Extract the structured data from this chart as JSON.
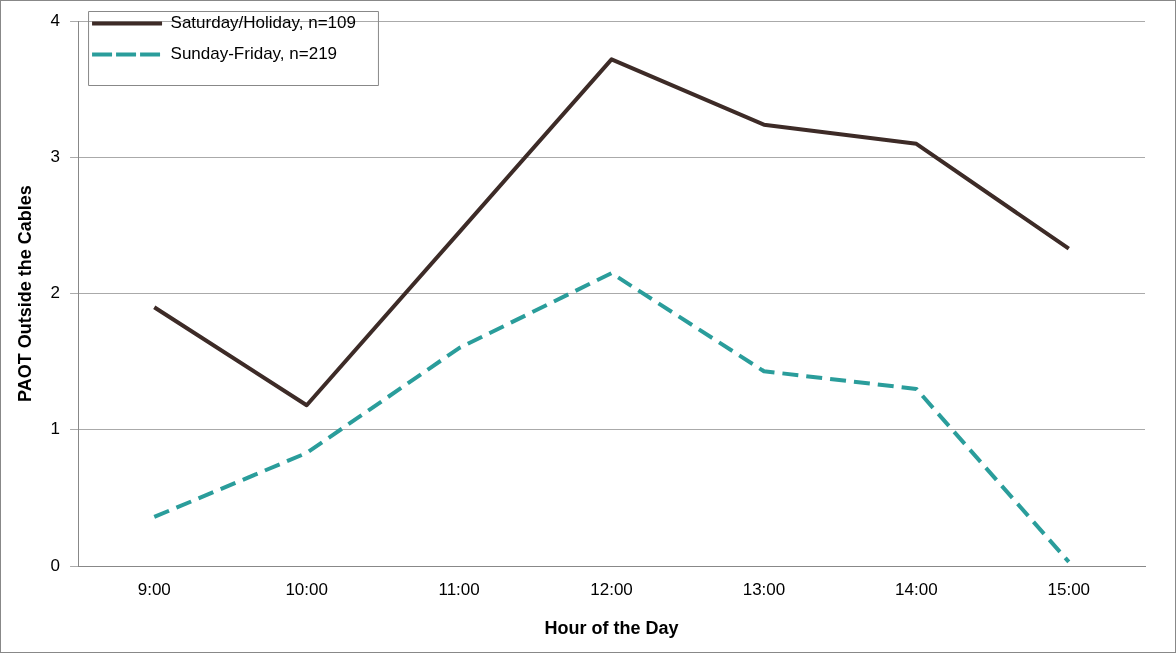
{
  "chart_data": {
    "type": "line",
    "xlabel": "Hour of the Day",
    "ylabel": "PAOT Outside the Cables",
    "categories": [
      "9:00",
      "10:00",
      "11:00",
      "12:00",
      "13:00",
      "14:00",
      "15:00"
    ],
    "series": [
      {
        "name": "Saturday/Holiday, n=109",
        "color": "#3d2b27",
        "values": [
          1.9,
          1.18,
          2.45,
          3.72,
          3.24,
          3.1,
          2.33
        ],
        "line_style": "solid"
      },
      {
        "name": "Sunday-Friday, n=219",
        "color": "#2a9d9b",
        "values": [
          0.36,
          0.83,
          1.6,
          2.15,
          1.43,
          1.3,
          0.03
        ],
        "line_style": "dashed"
      }
    ],
    "ylim": [
      0,
      4
    ],
    "yticks": [
      0,
      1,
      2,
      3,
      4
    ],
    "grid": "y",
    "legend": "top left",
    "marker": "none"
  }
}
